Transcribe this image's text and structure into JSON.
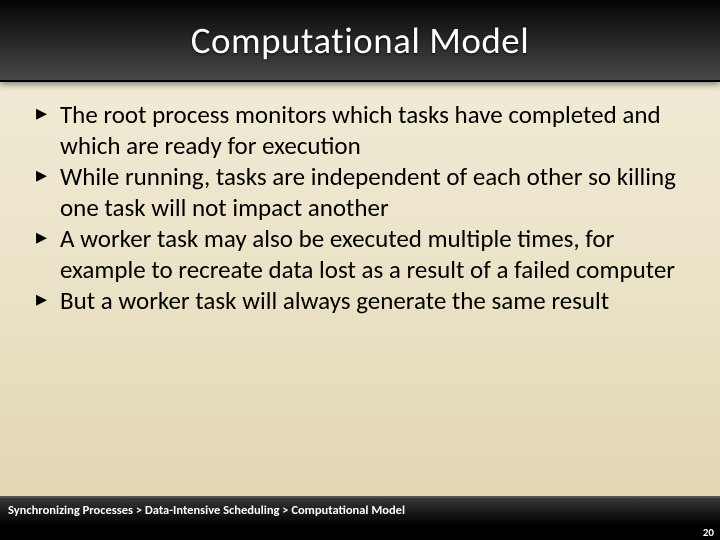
{
  "slide": {
    "title": "Computational Model",
    "bullets": [
      "The root process monitors which tasks have completed and which are ready for execution",
      "While running, tasks are independent of each other so killing one task will not impact another",
      "A worker task may also be executed multiple times, for example to recreate data lost as a result of a failed computer",
      "But a worker task will always generate the same result"
    ],
    "breadcrumb": "Synchronizing Processes > Data-Intensive Scheduling > Computational Model",
    "page_number": "20"
  },
  "style": {
    "title_color": "#ffffff",
    "title_fontsize": 37,
    "bullet_color": "#000000",
    "bullet_fontsize": 25,
    "breadcrumb_color": "#ffffff",
    "breadcrumb_fontsize": 12.5,
    "pagenum_color": "#ffffff",
    "pagenum_fontsize": 11,
    "header_gradient": [
      "#000000",
      "#454545"
    ],
    "body_gradient": [
      "#f3eedb",
      "#e0d5b0"
    ],
    "footer_gradient": [
      "#3a3a3a",
      "#000000"
    ]
  }
}
